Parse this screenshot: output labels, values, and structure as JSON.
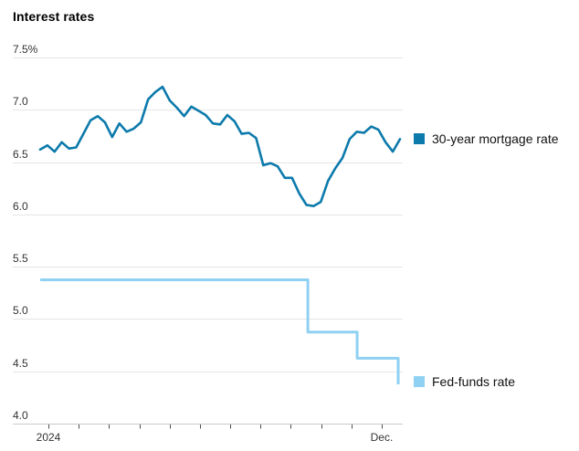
{
  "title": "Interest rates",
  "chart_data": {
    "type": "line",
    "title": "Interest rates",
    "y_axis": {
      "unit": "%",
      "range": [
        4.0,
        7.5
      ],
      "ticks": [
        "7.5%",
        "7.0",
        "6.5",
        "6.0",
        "5.5",
        "5.0",
        "4.5",
        "4.0"
      ],
      "tick_values": [
        7.5,
        7.0,
        6.5,
        6.0,
        5.5,
        5.0,
        4.5,
        4.0
      ],
      "grid": true
    },
    "x_axis": {
      "months": 12,
      "labels": [
        {
          "text": "2024",
          "tick_index": 0
        },
        {
          "text": "Dec.",
          "tick_index": 11
        }
      ]
    },
    "legend_position": "right",
    "series": [
      {
        "name": "30-year mortgage rate",
        "color": "#0c7aab",
        "style": "line",
        "cadence": "weekly",
        "values": [
          6.62,
          6.66,
          6.6,
          6.69,
          6.63,
          6.64,
          6.77,
          6.9,
          6.94,
          6.88,
          6.74,
          6.87,
          6.79,
          6.82,
          6.88,
          7.1,
          7.17,
          7.22,
          7.09,
          7.02,
          6.94,
          7.03,
          6.99,
          6.95,
          6.87,
          6.86,
          6.95,
          6.89,
          6.77,
          6.78,
          6.73,
          6.47,
          6.49,
          6.46,
          6.35,
          6.35,
          6.2,
          6.09,
          6.08,
          6.12,
          6.32,
          6.44,
          6.54,
          6.72,
          6.79,
          6.78,
          6.84,
          6.81,
          6.69,
          6.6,
          6.72
        ]
      },
      {
        "name": "Fed-funds rate",
        "color": "#8fd1f3",
        "style": "step",
        "points": [
          [
            0.0,
            5.375
          ],
          [
            0.744,
            5.375
          ],
          [
            0.744,
            4.875
          ],
          [
            0.881,
            4.875
          ],
          [
            0.881,
            4.625
          ],
          [
            0.995,
            4.625
          ],
          [
            0.995,
            4.375
          ]
        ]
      }
    ]
  }
}
